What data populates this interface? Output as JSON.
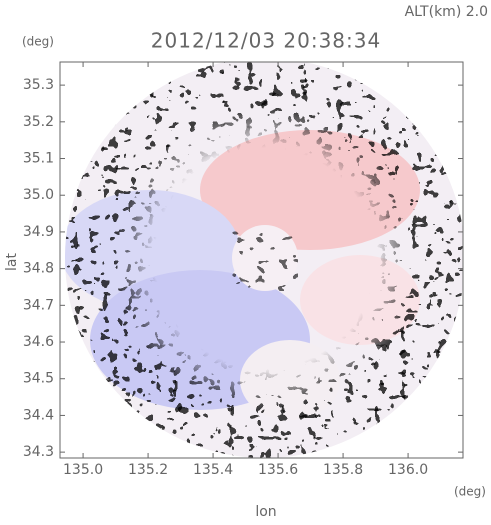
{
  "chart_data": {
    "type": "radar-field",
    "altitude_label": "ALT(km)  2.0",
    "title": "2012/12/03 20:38:34",
    "y_unit": "(deg)",
    "x_unit": "(deg)",
    "ylabel": "lat",
    "xlabel": "lon",
    "xlim": [
      134.929,
      136.169
    ],
    "ylim": [
      34.284,
      35.363
    ],
    "xticks": [
      {
        "value": 135.0,
        "label": "135.0"
      },
      135.2,
      135.4,
      135.6,
      135.8,
      {
        "value": 136.0,
        "label": "136.0"
      }
    ],
    "yticks": [
      34.3,
      34.4,
      34.5,
      34.6,
      34.7,
      34.8,
      34.9,
      {
        "value": 35.0,
        "label": "35.0"
      },
      35.1,
      35.2,
      35.3
    ]
  }
}
